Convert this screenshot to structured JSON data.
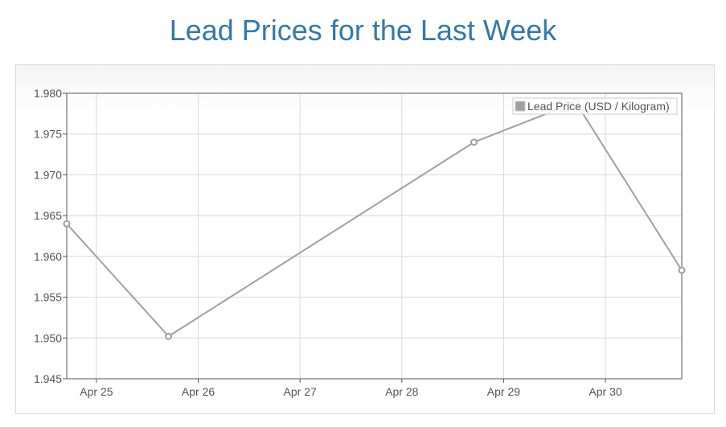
{
  "header": {
    "title": "Lead Prices for the Last Week"
  },
  "colors": {
    "title": "#3379ab",
    "series": "#a0a0a0",
    "grid": "#d8d8d8",
    "axis": "#545454"
  },
  "chart_data": {
    "type": "line",
    "title": "Lead Prices for the Last Week",
    "xlabel": "",
    "ylabel": "",
    "ylim": [
      1.945,
      1.98
    ],
    "yticks": [
      "1.945",
      "1.950",
      "1.955",
      "1.960",
      "1.965",
      "1.970",
      "1.975",
      "1.980"
    ],
    "xticks": [
      "Apr 25",
      "Apr 26",
      "Apr 27",
      "Apr 28",
      "Apr 29",
      "Apr 30"
    ],
    "xlim": [
      "2025-04-24T17:00",
      "2025-04-30T18:00"
    ],
    "grid": true,
    "legend_position": "top-right",
    "series": [
      {
        "name": "Lead Price (USD / Kilogram)",
        "color": "#a0a0a0",
        "points": [
          {
            "x": "2025-04-24T17:00",
            "y": 1.964
          },
          {
            "x": "2025-04-25T17:00",
            "y": 1.9502
          },
          {
            "x": "2025-04-28T17:00",
            "y": 1.974
          },
          {
            "x": "2025-04-29T17:00",
            "y": 1.9789
          },
          {
            "x": "2025-04-30T18:00",
            "y": 1.9583
          }
        ]
      }
    ]
  }
}
